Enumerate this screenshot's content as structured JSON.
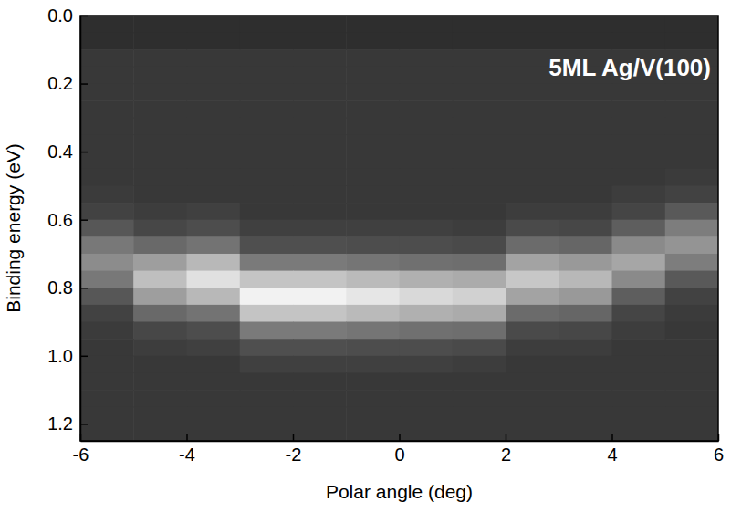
{
  "chart_data": {
    "type": "heatmap",
    "annotation": "5ML Ag/V(100)",
    "xlabel": "Polar angle (deg)",
    "ylabel": "Binding energy (eV)",
    "xlim": [
      -6,
      6
    ],
    "ylim": [
      0,
      1.25
    ],
    "xticks": [
      -6,
      -4,
      -2,
      0,
      2,
      4,
      6
    ],
    "yticks": [
      {
        "value": 0,
        "label": "0.0"
      },
      0.2,
      0.4,
      0.6,
      0.8,
      {
        "value": 1,
        "label": "1.0"
      },
      1.2
    ],
    "x": [
      -5.5,
      -4.5,
      -3.5,
      -2.5,
      -1.5,
      -0.5,
      0.5,
      1.5,
      2.5,
      3.5,
      4.5,
      5.5
    ],
    "y": [
      0.025,
      0.075,
      0.125,
      0.175,
      0.225,
      0.275,
      0.325,
      0.375,
      0.425,
      0.475,
      0.525,
      0.575,
      0.625,
      0.675,
      0.725,
      0.775,
      0.825,
      0.875,
      0.925,
      0.975,
      1.025,
      1.075,
      1.125,
      1.175,
      1.225
    ],
    "zlim": [
      0,
      100
    ],
    "z": [
      [
        18,
        18,
        18,
        18,
        18,
        18,
        18,
        18,
        18,
        18,
        18,
        18
      ],
      [
        18,
        18,
        18,
        18,
        18,
        18,
        18,
        18,
        18,
        18,
        18,
        18
      ],
      [
        22,
        22,
        22,
        22,
        22,
        22,
        22,
        22,
        22,
        22,
        22,
        22
      ],
      [
        22,
        22,
        22,
        22,
        22,
        22,
        22,
        22,
        22,
        22,
        22,
        22
      ],
      [
        22,
        22,
        22,
        22,
        22,
        22,
        22,
        22,
        22,
        22,
        22,
        22
      ],
      [
        22,
        22,
        22,
        22,
        22,
        22,
        22,
        22,
        22,
        22,
        22,
        22
      ],
      [
        22,
        22,
        22,
        22,
        22,
        22,
        22,
        22,
        22,
        22,
        22,
        22
      ],
      [
        22,
        22,
        22,
        22,
        22,
        22,
        22,
        22,
        22,
        22,
        22,
        22
      ],
      [
        22,
        22,
        22,
        22,
        22,
        22,
        22,
        22,
        22,
        22,
        22,
        22
      ],
      [
        22,
        22,
        22,
        22,
        22,
        22,
        22,
        22,
        22,
        22,
        22,
        23
      ],
      [
        23,
        22,
        22,
        22,
        22,
        22,
        22,
        22,
        22,
        22,
        24,
        26
      ],
      [
        26,
        24,
        25,
        22,
        22,
        22,
        22,
        22,
        24,
        24,
        27,
        35
      ],
      [
        34,
        28,
        30,
        25,
        25,
        25,
        25,
        24,
        29,
        28,
        37,
        49
      ],
      [
        47,
        41,
        45,
        31,
        31,
        30,
        30,
        29,
        42,
        40,
        54,
        58
      ],
      [
        55,
        62,
        72,
        48,
        48,
        46,
        44,
        43,
        64,
        60,
        65,
        49
      ],
      [
        47,
        75,
        88,
        77,
        77,
        73,
        69,
        67,
        78,
        72,
        54,
        35
      ],
      [
        34,
        62,
        72,
        95,
        95,
        90,
        85,
        82,
        64,
        60,
        37,
        26
      ],
      [
        26,
        41,
        45,
        77,
        77,
        73,
        69,
        67,
        42,
        40,
        27,
        23
      ],
      [
        23,
        28,
        30,
        48,
        48,
        46,
        44,
        43,
        29,
        28,
        24,
        22
      ],
      [
        22,
        24,
        25,
        31,
        31,
        30,
        30,
        29,
        24,
        24,
        22,
        22
      ],
      [
        22,
        22,
        22,
        25,
        25,
        25,
        25,
        24,
        22,
        22,
        22,
        22
      ],
      [
        22,
        22,
        22,
        22,
        22,
        22,
        22,
        22,
        22,
        22,
        22,
        22
      ],
      [
        22,
        22,
        22,
        22,
        22,
        22,
        22,
        22,
        22,
        22,
        22,
        22
      ],
      [
        22,
        22,
        22,
        22,
        22,
        22,
        22,
        22,
        22,
        22,
        22,
        22
      ],
      [
        22,
        22,
        22,
        22,
        22,
        22,
        22,
        22,
        22,
        22,
        22,
        22
      ]
    ]
  }
}
